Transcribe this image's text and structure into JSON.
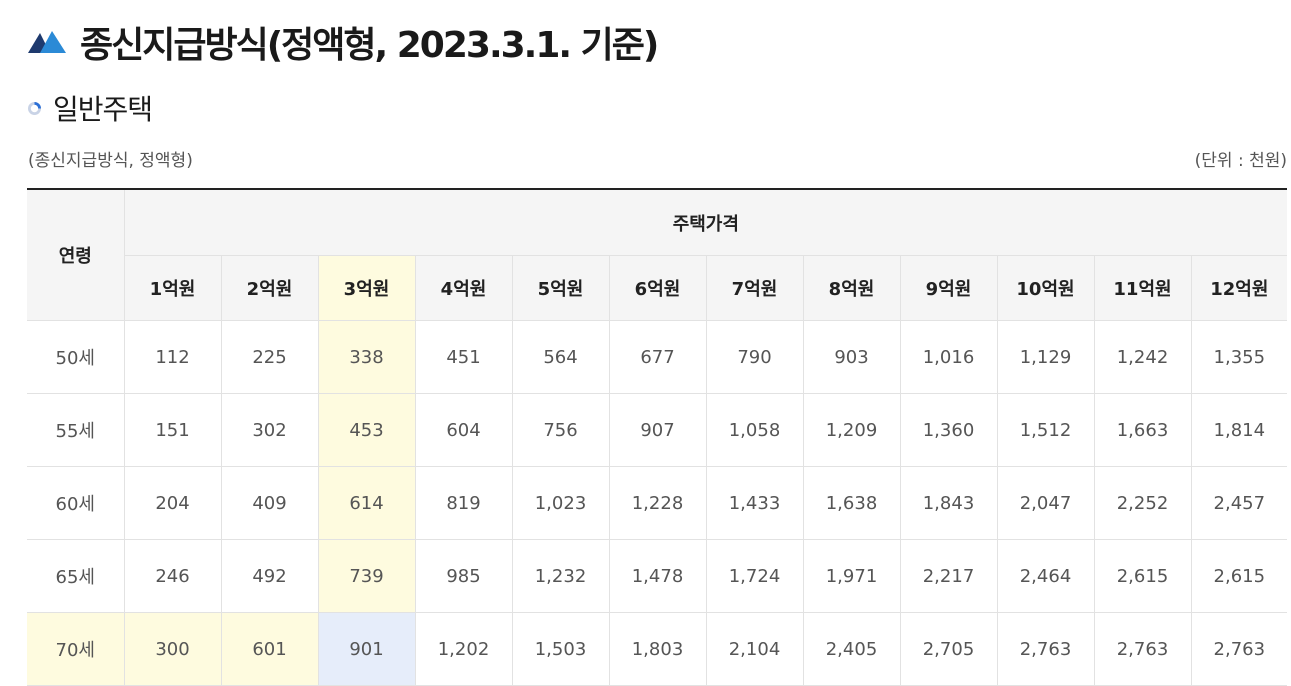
{
  "title": "종신지급방식(정액형, 2023.3.1. 기준)",
  "subtitle": "일반주택",
  "caption_left": "(종신지급방식, 정액형)",
  "caption_right": "(단위 : 천원)",
  "table": {
    "age_header": "연령",
    "price_header": "주택가격",
    "columns": [
      "1억원",
      "2억원",
      "3억원",
      "4억원",
      "5억원",
      "6억원",
      "7억원",
      "8억원",
      "9억원",
      "10억원",
      "11억원",
      "12억원"
    ],
    "rows": [
      {
        "age": "50세",
        "values": [
          "112",
          "225",
          "338",
          "451",
          "564",
          "677",
          "790",
          "903",
          "1,016",
          "1,129",
          "1,242",
          "1,355"
        ]
      },
      {
        "age": "55세",
        "values": [
          "151",
          "302",
          "453",
          "604",
          "756",
          "907",
          "1,058",
          "1,209",
          "1,360",
          "1,512",
          "1,663",
          "1,814"
        ]
      },
      {
        "age": "60세",
        "values": [
          "204",
          "409",
          "614",
          "819",
          "1,023",
          "1,228",
          "1,433",
          "1,638",
          "1,843",
          "2,047",
          "2,252",
          "2,457"
        ]
      },
      {
        "age": "65세",
        "values": [
          "246",
          "492",
          "739",
          "985",
          "1,232",
          "1,478",
          "1,724",
          "1,971",
          "2,217",
          "2,464",
          "2,615",
          "2,615"
        ]
      },
      {
        "age": "70세",
        "values": [
          "300",
          "601",
          "901",
          "1,202",
          "1,503",
          "1,803",
          "2,104",
          "2,405",
          "2,705",
          "2,763",
          "2,763",
          "2,763"
        ]
      }
    ]
  },
  "colors": {
    "highlight_yellow": "#fefbdf",
    "highlight_blue": "#e6edfa",
    "header_bg": "#f5f5f5",
    "logo_blue": "#2b6fd6",
    "logo_navy": "#1e3a6e"
  }
}
